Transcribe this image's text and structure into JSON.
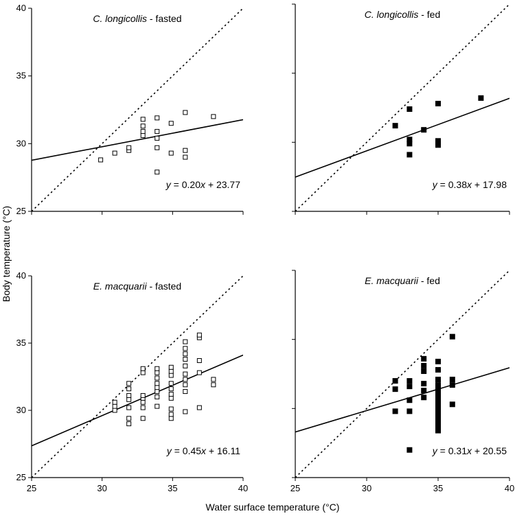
{
  "figure": {
    "ylabel": "Body temperature (°C)",
    "xlabel": "Water surface temperature (°C)"
  },
  "chart_data": [
    {
      "type": "scatter",
      "title_species": "C. longicollis",
      "title_suffix": " - fasted",
      "marker": "open-square",
      "xlim": [
        25,
        40
      ],
      "ylim": [
        25,
        40
      ],
      "xticks": [
        25,
        30,
        35,
        40
      ],
      "yticks": [
        25,
        30,
        35,
        40
      ],
      "show_x_tick_labels": false,
      "show_y_tick_labels": true,
      "equation": {
        "y": "y",
        "rest": " = 0.20",
        "x": "x",
        "tail": " + 23.77"
      },
      "fit": {
        "slope": 0.2,
        "intercept": 23.77
      },
      "points": [
        [
          29.9,
          28.8
        ],
        [
          30.9,
          29.3
        ],
        [
          31.9,
          29.5
        ],
        [
          31.9,
          29.7
        ],
        [
          32.9,
          30.6
        ],
        [
          32.9,
          30.9
        ],
        [
          32.9,
          31.3
        ],
        [
          32.9,
          31.8
        ],
        [
          33.9,
          29.7
        ],
        [
          33.9,
          30.4
        ],
        [
          33.9,
          30.9
        ],
        [
          33.9,
          31.9
        ],
        [
          33.9,
          27.9
        ],
        [
          34.9,
          29.3
        ],
        [
          34.9,
          31.5
        ],
        [
          35.9,
          29.0
        ],
        [
          35.9,
          29.5
        ],
        [
          35.9,
          32.3
        ],
        [
          37.9,
          32.0
        ]
      ]
    },
    {
      "type": "scatter",
      "title_species": "C. longicollis",
      "title_suffix": " - fed",
      "marker": "filled-square",
      "xlim": [
        25,
        40
      ],
      "ylim": [
        25,
        40
      ],
      "xticks": [
        25,
        30,
        35,
        40
      ],
      "yticks": [
        25,
        30,
        35,
        40
      ],
      "show_x_tick_labels": false,
      "show_y_tick_labels": false,
      "equation": {
        "y": "y",
        "rest": " = 0.38",
        "x": "x",
        "tail": " + 17.98"
      },
      "fit": {
        "slope": 0.38,
        "intercept": 17.98
      },
      "points": [
        [
          32.0,
          31.2
        ],
        [
          33.0,
          29.1
        ],
        [
          33.0,
          29.9
        ],
        [
          33.0,
          30.2
        ],
        [
          33.0,
          32.4
        ],
        [
          34.0,
          30.9
        ],
        [
          35.0,
          29.8
        ],
        [
          35.0,
          30.1
        ],
        [
          35.0,
          32.8
        ],
        [
          38.0,
          33.2
        ]
      ]
    },
    {
      "type": "scatter",
      "title_species": "E. macquarii",
      "title_suffix": " - fasted",
      "marker": "open-square",
      "xlim": [
        25,
        40
      ],
      "ylim": [
        25,
        40
      ],
      "xticks": [
        25,
        30,
        35,
        40
      ],
      "yticks": [
        25,
        30,
        35,
        40
      ],
      "show_x_tick_labels": true,
      "show_y_tick_labels": true,
      "equation": {
        "y": "y",
        "rest": " = 0.45",
        "x": "x",
        "tail": " + 16.11"
      },
      "fit": {
        "slope": 0.45,
        "intercept": 16.11
      },
      "points": [
        [
          30.9,
          30.0
        ],
        [
          30.9,
          30.3
        ],
        [
          30.9,
          30.6
        ],
        [
          31.9,
          29.0
        ],
        [
          31.9,
          29.4
        ],
        [
          31.9,
          30.2
        ],
        [
          31.9,
          30.8
        ],
        [
          31.9,
          31.1
        ],
        [
          31.9,
          31.6
        ],
        [
          31.9,
          32.0
        ],
        [
          32.9,
          29.4
        ],
        [
          32.9,
          30.2
        ],
        [
          32.9,
          30.6
        ],
        [
          32.9,
          30.9
        ],
        [
          32.9,
          31.1
        ],
        [
          32.9,
          32.8
        ],
        [
          32.9,
          33.1
        ],
        [
          33.9,
          30.3
        ],
        [
          33.9,
          31.0
        ],
        [
          33.9,
          31.4
        ],
        [
          33.9,
          31.7
        ],
        [
          33.9,
          32.0
        ],
        [
          33.9,
          32.4
        ],
        [
          33.9,
          32.8
        ],
        [
          33.9,
          33.1
        ],
        [
          34.9,
          29.4
        ],
        [
          34.9,
          29.7
        ],
        [
          34.9,
          30.1
        ],
        [
          34.9,
          30.9
        ],
        [
          34.9,
          31.2
        ],
        [
          34.9,
          31.6
        ],
        [
          34.9,
          32.0
        ],
        [
          34.9,
          32.6
        ],
        [
          34.9,
          32.9
        ],
        [
          34.9,
          33.2
        ],
        [
          35.9,
          29.9
        ],
        [
          35.9,
          31.4
        ],
        [
          35.9,
          31.9
        ],
        [
          35.9,
          32.3
        ],
        [
          35.9,
          32.7
        ],
        [
          35.9,
          33.3
        ],
        [
          35.9,
          33.8
        ],
        [
          35.9,
          34.2
        ],
        [
          35.9,
          34.6
        ],
        [
          35.9,
          35.1
        ],
        [
          36.9,
          30.2
        ],
        [
          36.9,
          32.8
        ],
        [
          36.9,
          33.7
        ],
        [
          36.9,
          35.4
        ],
        [
          36.9,
          35.6
        ],
        [
          37.9,
          31.9
        ],
        [
          37.9,
          32.3
        ]
      ]
    },
    {
      "type": "scatter",
      "title_species": "E. macquarii",
      "title_suffix": " - fed",
      "marker": "filled-square",
      "xlim": [
        25,
        40
      ],
      "ylim": [
        25,
        40
      ],
      "xticks": [
        25,
        30,
        35,
        40
      ],
      "yticks": [
        25,
        30,
        35,
        40
      ],
      "show_x_tick_labels": true,
      "show_y_tick_labels": false,
      "equation": {
        "y": "y",
        "rest": " = 0.31",
        "x": "x",
        "tail": " + 20.55"
      },
      "fit": {
        "slope": 0.31,
        "intercept": 20.55
      },
      "points": [
        [
          32.0,
          29.8
        ],
        [
          32.0,
          31.4
        ],
        [
          32.0,
          32.0
        ],
        [
          33.0,
          27.0
        ],
        [
          33.0,
          29.8
        ],
        [
          33.0,
          30.6
        ],
        [
          33.0,
          31.6
        ],
        [
          33.0,
          32.0
        ],
        [
          34.0,
          30.8
        ],
        [
          34.0,
          31.3
        ],
        [
          34.0,
          31.8
        ],
        [
          34.0,
          32.7
        ],
        [
          34.0,
          33.1
        ],
        [
          34.0,
          33.6
        ],
        [
          35.0,
          28.4
        ],
        [
          35.0,
          28.7
        ],
        [
          35.0,
          29.0
        ],
        [
          35.0,
          29.3
        ],
        [
          35.0,
          29.6
        ],
        [
          35.0,
          29.9
        ],
        [
          35.0,
          30.2
        ],
        [
          35.0,
          30.5
        ],
        [
          35.0,
          30.8
        ],
        [
          35.0,
          31.1
        ],
        [
          35.0,
          31.4
        ],
        [
          35.0,
          31.7
        ],
        [
          35.0,
          32.1
        ],
        [
          35.0,
          32.8
        ],
        [
          35.0,
          33.4
        ],
        [
          36.0,
          30.3
        ],
        [
          36.0,
          31.7
        ],
        [
          36.0,
          32.1
        ],
        [
          36.0,
          35.2
        ]
      ]
    }
  ]
}
